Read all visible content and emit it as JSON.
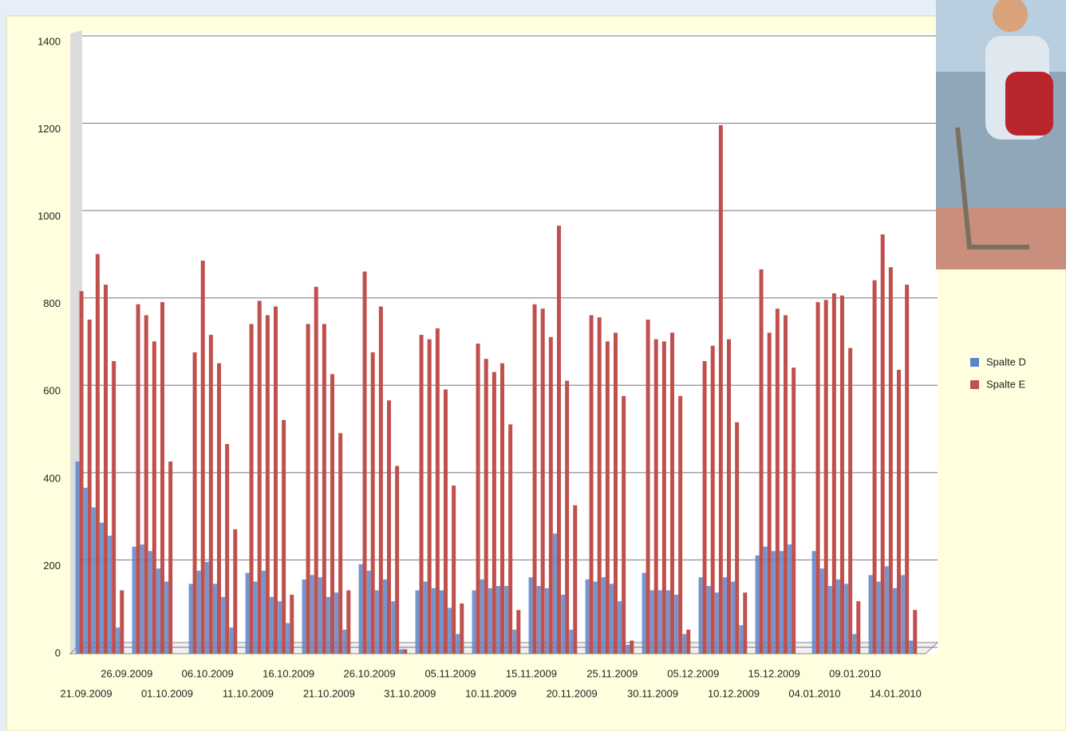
{
  "chart_data": {
    "type": "bar",
    "categories": [
      "21.09.2009",
      null,
      null,
      null,
      null,
      "26.09.2009",
      null,
      null,
      null,
      null,
      "01.10.2009",
      null,
      null,
      null,
      null,
      "06.10.2009",
      null,
      null,
      null,
      null,
      "11.10.2009",
      null,
      null,
      null,
      null,
      "16.10.2009",
      null,
      null,
      null,
      null,
      "21.10.2009",
      null,
      null,
      null,
      null,
      "26.10.2009",
      null,
      null,
      null,
      null,
      "31.10.2009",
      null,
      null,
      null,
      null,
      "05.11.2009",
      null,
      null,
      null,
      null,
      "10.11.2009",
      null,
      null,
      null,
      null,
      "15.11.2009",
      null,
      null,
      null,
      null,
      "20.11.2009",
      null,
      null,
      null,
      null,
      "25.11.2009",
      null,
      null,
      null,
      null,
      "30.11.2009",
      null,
      null,
      null,
      null,
      "05.12.2009",
      null,
      null,
      null,
      null,
      "10.12.2009",
      null,
      null,
      null,
      null,
      "15.12.2009",
      null,
      null,
      null,
      null,
      "04.01.2010",
      null,
      null,
      null,
      null,
      "09.01.2010",
      null,
      null,
      null,
      null,
      "14.01.2010",
      null,
      null,
      null,
      null
    ],
    "series": [
      {
        "name": "Spalte D",
        "color": "#5b84c8",
        "values": [
          440,
          380,
          335,
          300,
          270,
          60,
          0,
          245,
          250,
          235,
          195,
          165,
          0,
          0,
          160,
          190,
          210,
          160,
          130,
          60,
          0,
          185,
          165,
          190,
          130,
          120,
          70,
          0,
          170,
          180,
          175,
          130,
          140,
          55,
          0,
          205,
          190,
          145,
          170,
          120,
          10,
          0,
          145,
          165,
          150,
          145,
          105,
          45,
          0,
          145,
          170,
          150,
          155,
          155,
          55,
          0,
          175,
          155,
          150,
          275,
          135,
          55,
          0,
          170,
          165,
          175,
          160,
          120,
          20,
          0,
          185,
          145,
          145,
          145,
          135,
          45,
          0,
          175,
          155,
          140,
          175,
          165,
          65,
          0,
          225,
          245,
          235,
          235,
          250,
          0,
          0,
          235,
          195,
          155,
          170,
          160,
          45,
          0,
          180,
          165,
          200,
          150,
          180,
          30,
          0
        ]
      },
      {
        "name": "Spalte E",
        "color": "#c0504d",
        "values": [
          830,
          765,
          915,
          845,
          670,
          145,
          0,
          800,
          775,
          715,
          805,
          440,
          0,
          0,
          690,
          900,
          730,
          665,
          480,
          285,
          0,
          755,
          808,
          775,
          795,
          535,
          135,
          0,
          755,
          840,
          755,
          640,
          505,
          145,
          0,
          875,
          690,
          795,
          580,
          430,
          10,
          0,
          730,
          720,
          745,
          605,
          385,
          115,
          0,
          710,
          675,
          645,
          665,
          525,
          100,
          0,
          800,
          790,
          725,
          980,
          625,
          340,
          0,
          775,
          770,
          715,
          735,
          590,
          30,
          0,
          765,
          720,
          715,
          735,
          590,
          55,
          0,
          670,
          705,
          1210,
          720,
          530,
          140,
          0,
          880,
          735,
          790,
          775,
          655,
          0,
          0,
          805,
          810,
          825,
          820,
          700,
          120,
          0,
          855,
          960,
          885,
          650,
          845,
          100,
          0
        ]
      }
    ],
    "ylim": [
      0,
      1400
    ],
    "yticks": [
      0,
      200,
      400,
      600,
      800,
      1000,
      1200,
      1400
    ],
    "grid": true
  }
}
